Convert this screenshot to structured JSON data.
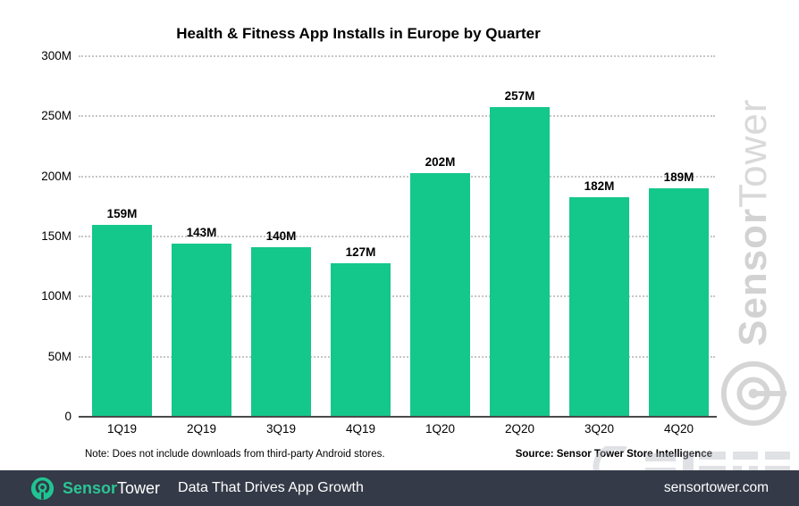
{
  "chart_data": {
    "type": "bar",
    "title": "Health & Fitness App Installs in Europe by Quarter",
    "categories": [
      "1Q19",
      "2Q19",
      "3Q19",
      "4Q19",
      "1Q20",
      "2Q20",
      "3Q20",
      "4Q20"
    ],
    "values": [
      159,
      143,
      140,
      127,
      202,
      257,
      182,
      189
    ],
    "unit": "M",
    "bar_labels": [
      "159M",
      "143M",
      "140M",
      "127M",
      "202M",
      "257M",
      "182M",
      "189M"
    ],
    "xlabel": "",
    "ylabel": "",
    "ylim": [
      0,
      300
    ],
    "yticks": [
      "300M",
      "250M",
      "200M",
      "150M",
      "100M",
      "50M",
      "0"
    ],
    "grid": "horizontal-dotted",
    "legend": "none",
    "bar_color": "#14c78a"
  },
  "note": "Note: Does not include downloads from third-party Android stores.",
  "source": "Source: Sensor Tower Store Intelligence",
  "side_watermark": {
    "brand_bold": "Sensor",
    "brand_regular": "Tower",
    "color": "#d6d6d6"
  },
  "footer": {
    "brand_bold": "Sensor",
    "brand_regular": "Tower",
    "tagline": "Data That Drives App Growth",
    "website": "sensortower.com",
    "background": "#343a47",
    "accent_green": "#2bc595"
  }
}
